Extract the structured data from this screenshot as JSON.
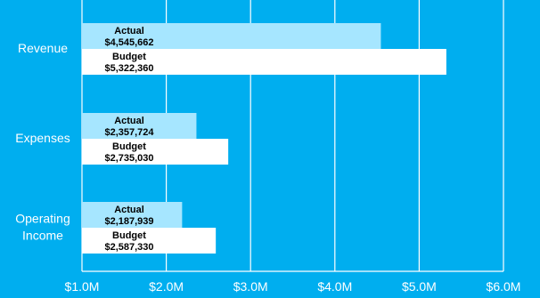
{
  "chart_data": {
    "type": "bar",
    "orientation": "horizontal",
    "categories": [
      [
        "Revenue"
      ],
      [
        "Expenses"
      ],
      [
        "Operating",
        "Income"
      ]
    ],
    "series": [
      {
        "name": "Actual",
        "values": [
          4545662,
          2357724,
          2187939
        ],
        "labels": [
          "$4,545,662",
          "$2,357,724",
          "$2,187,939"
        ],
        "color": "#a6e6ff"
      },
      {
        "name": "Budget",
        "values": [
          5322360,
          2735030,
          2587330
        ],
        "labels": [
          "$5,322,360",
          "$2,735,030",
          "$2,587,330"
        ],
        "color": "#ffffff"
      }
    ],
    "xlim": [
      1000000,
      6000000
    ],
    "xticks": [
      1000000,
      2000000,
      3000000,
      4000000,
      5000000,
      6000000
    ],
    "xtick_labels": [
      "$1.0M",
      "$2.0M",
      "$3.0M",
      "$4.0M",
      "$5.0M",
      "$6.0M"
    ],
    "grid": true,
    "colors": {
      "background": "#00aeef",
      "gridline": "#ffffff",
      "text": "#ffffff"
    },
    "title": "",
    "xlabel": "",
    "ylabel": ""
  }
}
